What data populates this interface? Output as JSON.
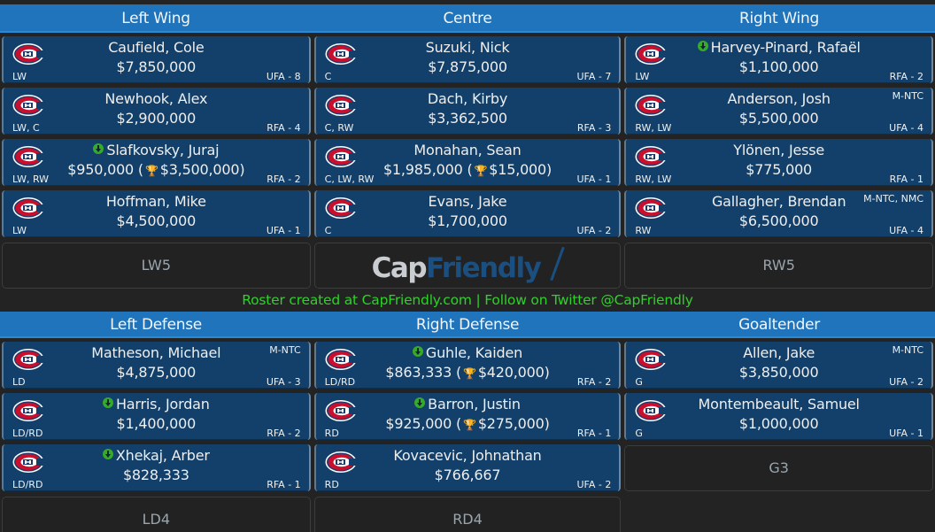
{
  "colors": {
    "header_bg": "#1f74bb",
    "card_bg": "#12406a",
    "page_bg": "#232323",
    "footer_text": "#2fd12a",
    "trophy": "#e8c21a",
    "badge_green": "#37a92b"
  },
  "forwards_header": [
    "Left Wing",
    "Centre",
    "Right Wing"
  ],
  "defense_header": [
    "Left Defense",
    "Right Defense",
    "Goaltender"
  ],
  "left_wing": [
    {
      "name": "Caufield, Cole",
      "cap": "$7,850,000",
      "pos": "LW",
      "status": "UFA - 8",
      "clause": "",
      "badge": false,
      "bonus": ""
    },
    {
      "name": "Newhook, Alex",
      "cap": "$2,900,000",
      "pos": "LW, C",
      "status": "RFA - 4",
      "clause": "",
      "badge": false,
      "bonus": ""
    },
    {
      "name": "Slafkovsky, Juraj",
      "cap": "$950,000",
      "pos": "LW, RW",
      "status": "RFA - 2",
      "clause": "",
      "badge": true,
      "bonus": "$3,500,000"
    },
    {
      "name": "Hoffman, Mike",
      "cap": "$4,500,000",
      "pos": "LW",
      "status": "UFA - 1",
      "clause": "",
      "badge": false,
      "bonus": ""
    }
  ],
  "centre": [
    {
      "name": "Suzuki, Nick",
      "cap": "$7,875,000",
      "pos": "C",
      "status": "UFA - 7",
      "clause": "",
      "badge": false,
      "bonus": ""
    },
    {
      "name": "Dach, Kirby",
      "cap": "$3,362,500",
      "pos": "C, RW",
      "status": "RFA - 3",
      "clause": "",
      "badge": false,
      "bonus": ""
    },
    {
      "name": "Monahan, Sean",
      "cap": "$1,985,000",
      "pos": "C, LW, RW",
      "status": "UFA - 1",
      "clause": "",
      "badge": false,
      "bonus": "$15,000"
    },
    {
      "name": "Evans, Jake",
      "cap": "$1,700,000",
      "pos": "C",
      "status": "UFA - 2",
      "clause": "",
      "badge": false,
      "bonus": ""
    }
  ],
  "right_wing": [
    {
      "name": "Harvey-Pinard, Rafaël",
      "cap": "$1,100,000",
      "pos": "LW",
      "status": "RFA - 2",
      "clause": "",
      "badge": true,
      "bonus": ""
    },
    {
      "name": "Anderson, Josh",
      "cap": "$5,500,000",
      "pos": "RW, LW",
      "status": "UFA - 4",
      "clause": "M-NTC",
      "badge": false,
      "bonus": ""
    },
    {
      "name": "Ylönen, Jesse",
      "cap": "$775,000",
      "pos": "RW, LW",
      "status": "RFA - 1",
      "clause": "",
      "badge": false,
      "bonus": ""
    },
    {
      "name": "Gallagher, Brendan",
      "cap": "$6,500,000",
      "pos": "RW",
      "status": "UFA - 4",
      "clause": "M-NTC, NMC",
      "badge": false,
      "bonus": ""
    }
  ],
  "empty_slots": {
    "lw5": "LW5",
    "rw5": "RW5",
    "ld4": "LD4",
    "rd4": "RD4",
    "g3": "G3"
  },
  "brand": {
    "cap": "Cap",
    "friendly": "Friendly"
  },
  "footer": "Roster created at CapFriendly.com | Follow on Twitter @CapFriendly",
  "left_defense": [
    {
      "name": "Matheson, Michael",
      "cap": "$4,875,000",
      "pos": "LD",
      "status": "UFA - 3",
      "clause": "M-NTC",
      "badge": false,
      "bonus": ""
    },
    {
      "name": "Harris, Jordan",
      "cap": "$1,400,000",
      "pos": "LD/RD",
      "status": "RFA - 2",
      "clause": "",
      "badge": true,
      "bonus": ""
    },
    {
      "name": "Xhekaj, Arber",
      "cap": "$828,333",
      "pos": "LD/RD",
      "status": "RFA - 1",
      "clause": "",
      "badge": true,
      "bonus": ""
    }
  ],
  "right_defense": [
    {
      "name": "Guhle, Kaiden",
      "cap": "$863,333",
      "pos": "LD/RD",
      "status": "RFA - 2",
      "clause": "",
      "badge": true,
      "bonus": "$420,000"
    },
    {
      "name": "Barron, Justin",
      "cap": "$925,000",
      "pos": "RD",
      "status": "RFA - 1",
      "clause": "",
      "badge": true,
      "bonus": "$275,000"
    },
    {
      "name": "Kovacevic, Johnathan",
      "cap": "$766,667",
      "pos": "RD",
      "status": "UFA - 2",
      "clause": "",
      "badge": false,
      "bonus": ""
    }
  ],
  "goaltender": [
    {
      "name": "Allen, Jake",
      "cap": "$3,850,000",
      "pos": "G",
      "status": "UFA - 2",
      "clause": "M-NTC",
      "badge": false,
      "bonus": ""
    },
    {
      "name": "Montembeault, Samuel",
      "cap": "$1,000,000",
      "pos": "G",
      "status": "UFA - 1",
      "clause": "",
      "badge": false,
      "bonus": ""
    }
  ]
}
